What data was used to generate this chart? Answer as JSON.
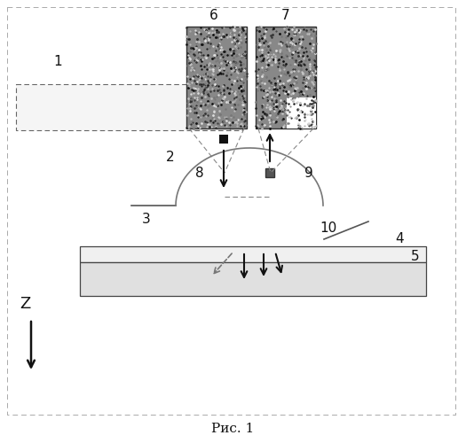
{
  "title": "Рис. 1",
  "bg_color": "#ffffff",
  "fig_width": 5.25,
  "fig_height": 5.0,
  "dpi": 100
}
